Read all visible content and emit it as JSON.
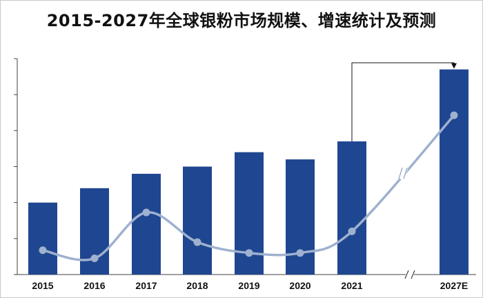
{
  "title": "2015-2027年全球银粉市场规模、增速统计及预测",
  "colors": {
    "bar": "#1f4690",
    "line": "#9fb1cf",
    "axis": "#404040",
    "connector": "#111111"
  },
  "chart_data": {
    "type": "bar",
    "categories": [
      "2015",
      "2016",
      "2017",
      "2018",
      "2019",
      "2020",
      "2021",
      "2027E"
    ],
    "series": [
      {
        "type": "bar",
        "values": [
          2.0,
          2.4,
          2.8,
          3.0,
          3.4,
          3.2,
          3.7,
          5.7
        ]
      },
      {
        "type": "line",
        "values": [
          0.9,
          0.6,
          2.3,
          1.2,
          0.8,
          0.8,
          1.6,
          5.9
        ]
      }
    ],
    "bar_ylim": [
      0,
      6.0
    ],
    "line_ylim": [
      0,
      8.0
    ],
    "y_tick_count": 6,
    "axis_break_between": [
      "2021",
      "2027E"
    ],
    "connector_from": "2021",
    "connector_to": "2027E",
    "grid": false,
    "legend": "none"
  }
}
